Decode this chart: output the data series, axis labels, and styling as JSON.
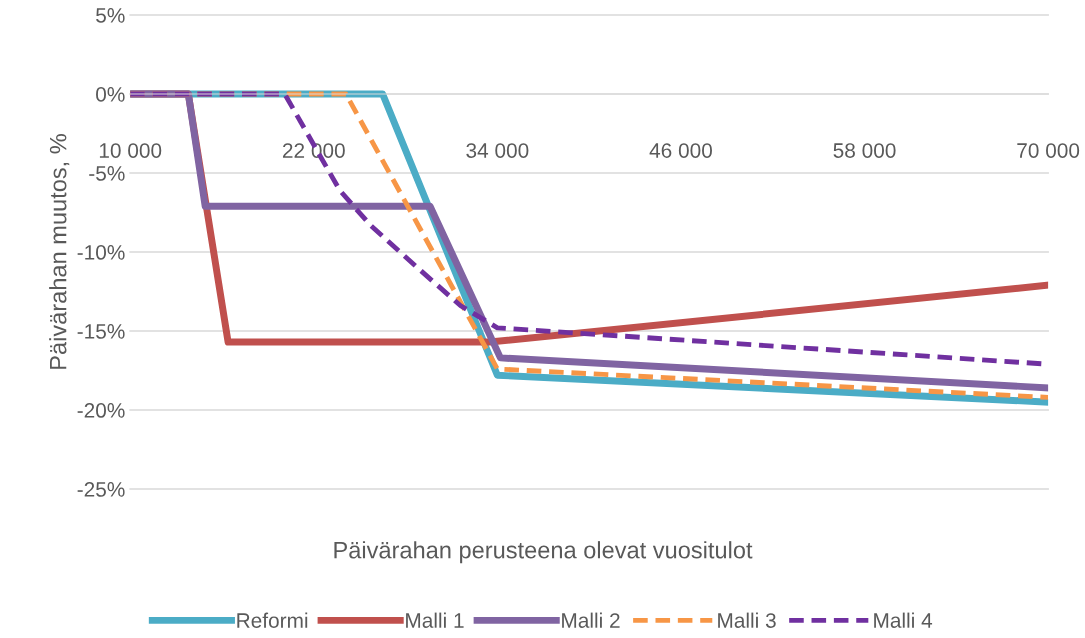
{
  "chart_data": {
    "type": "line",
    "xlabel": "Päivärahan perusteena olevat vuositulot",
    "ylabel": "Päivärahan muutos, %",
    "xlim": [
      10000,
      70000
    ],
    "xticks": [
      {
        "value": 10000,
        "label": "10 000"
      },
      {
        "value": 22000,
        "label": "22 000"
      },
      {
        "value": 34000,
        "label": "34 000"
      },
      {
        "value": 46000,
        "label": "46 000"
      },
      {
        "value": 58000,
        "label": "58 000"
      },
      {
        "value": 70000,
        "label": "70 000"
      }
    ],
    "ylim": [
      -25,
      5
    ],
    "yticks": [
      {
        "value": 5,
        "label": "5%"
      },
      {
        "value": 0,
        "label": "0%"
      },
      {
        "value": -5,
        "label": "-5%"
      },
      {
        "value": -10,
        "label": "-10%"
      },
      {
        "value": -15,
        "label": "-15%"
      },
      {
        "value": -20,
        "label": "-20%"
      },
      {
        "value": -25,
        "label": "-25%"
      }
    ],
    "grid": "y",
    "legend": "bottom",
    "series": [
      {
        "name": "Reformi",
        "color": "#4bacc6",
        "line_style": "solid",
        "x": [
          10000,
          26500,
          34000,
          70000
        ],
        "values": [
          0,
          0,
          -17.8,
          -19.5
        ]
      },
      {
        "name": "Malli 1",
        "color": "#c0504d",
        "line_style": "solid",
        "x": [
          10000,
          13800,
          16400,
          33500,
          70000
        ],
        "values": [
          0,
          0,
          -15.7,
          -15.7,
          -12.1
        ]
      },
      {
        "name": "Malli 2",
        "color": "#8064a2",
        "line_style": "solid",
        "x": [
          10000,
          13800,
          14900,
          29600,
          34200,
          70000
        ],
        "values": [
          0,
          0,
          -7.1,
          -7.1,
          -16.7,
          -18.6
        ]
      },
      {
        "name": "Malli 3",
        "color": "#f79646",
        "line_style": "dashed",
        "x": [
          10000,
          24100,
          34000,
          70000
        ],
        "values": [
          0,
          0,
          -17.4,
          -19.2
        ]
      },
      {
        "name": "Malli 4",
        "color": "#7030a0",
        "line_style": "dashed",
        "x": [
          10000,
          20100,
          23700,
          25700,
          28900,
          31600,
          34000,
          70000
        ],
        "values": [
          0,
          0,
          -6.1,
          -8.3,
          -11.1,
          -13.4,
          -14.8,
          -17.1
        ]
      }
    ]
  }
}
